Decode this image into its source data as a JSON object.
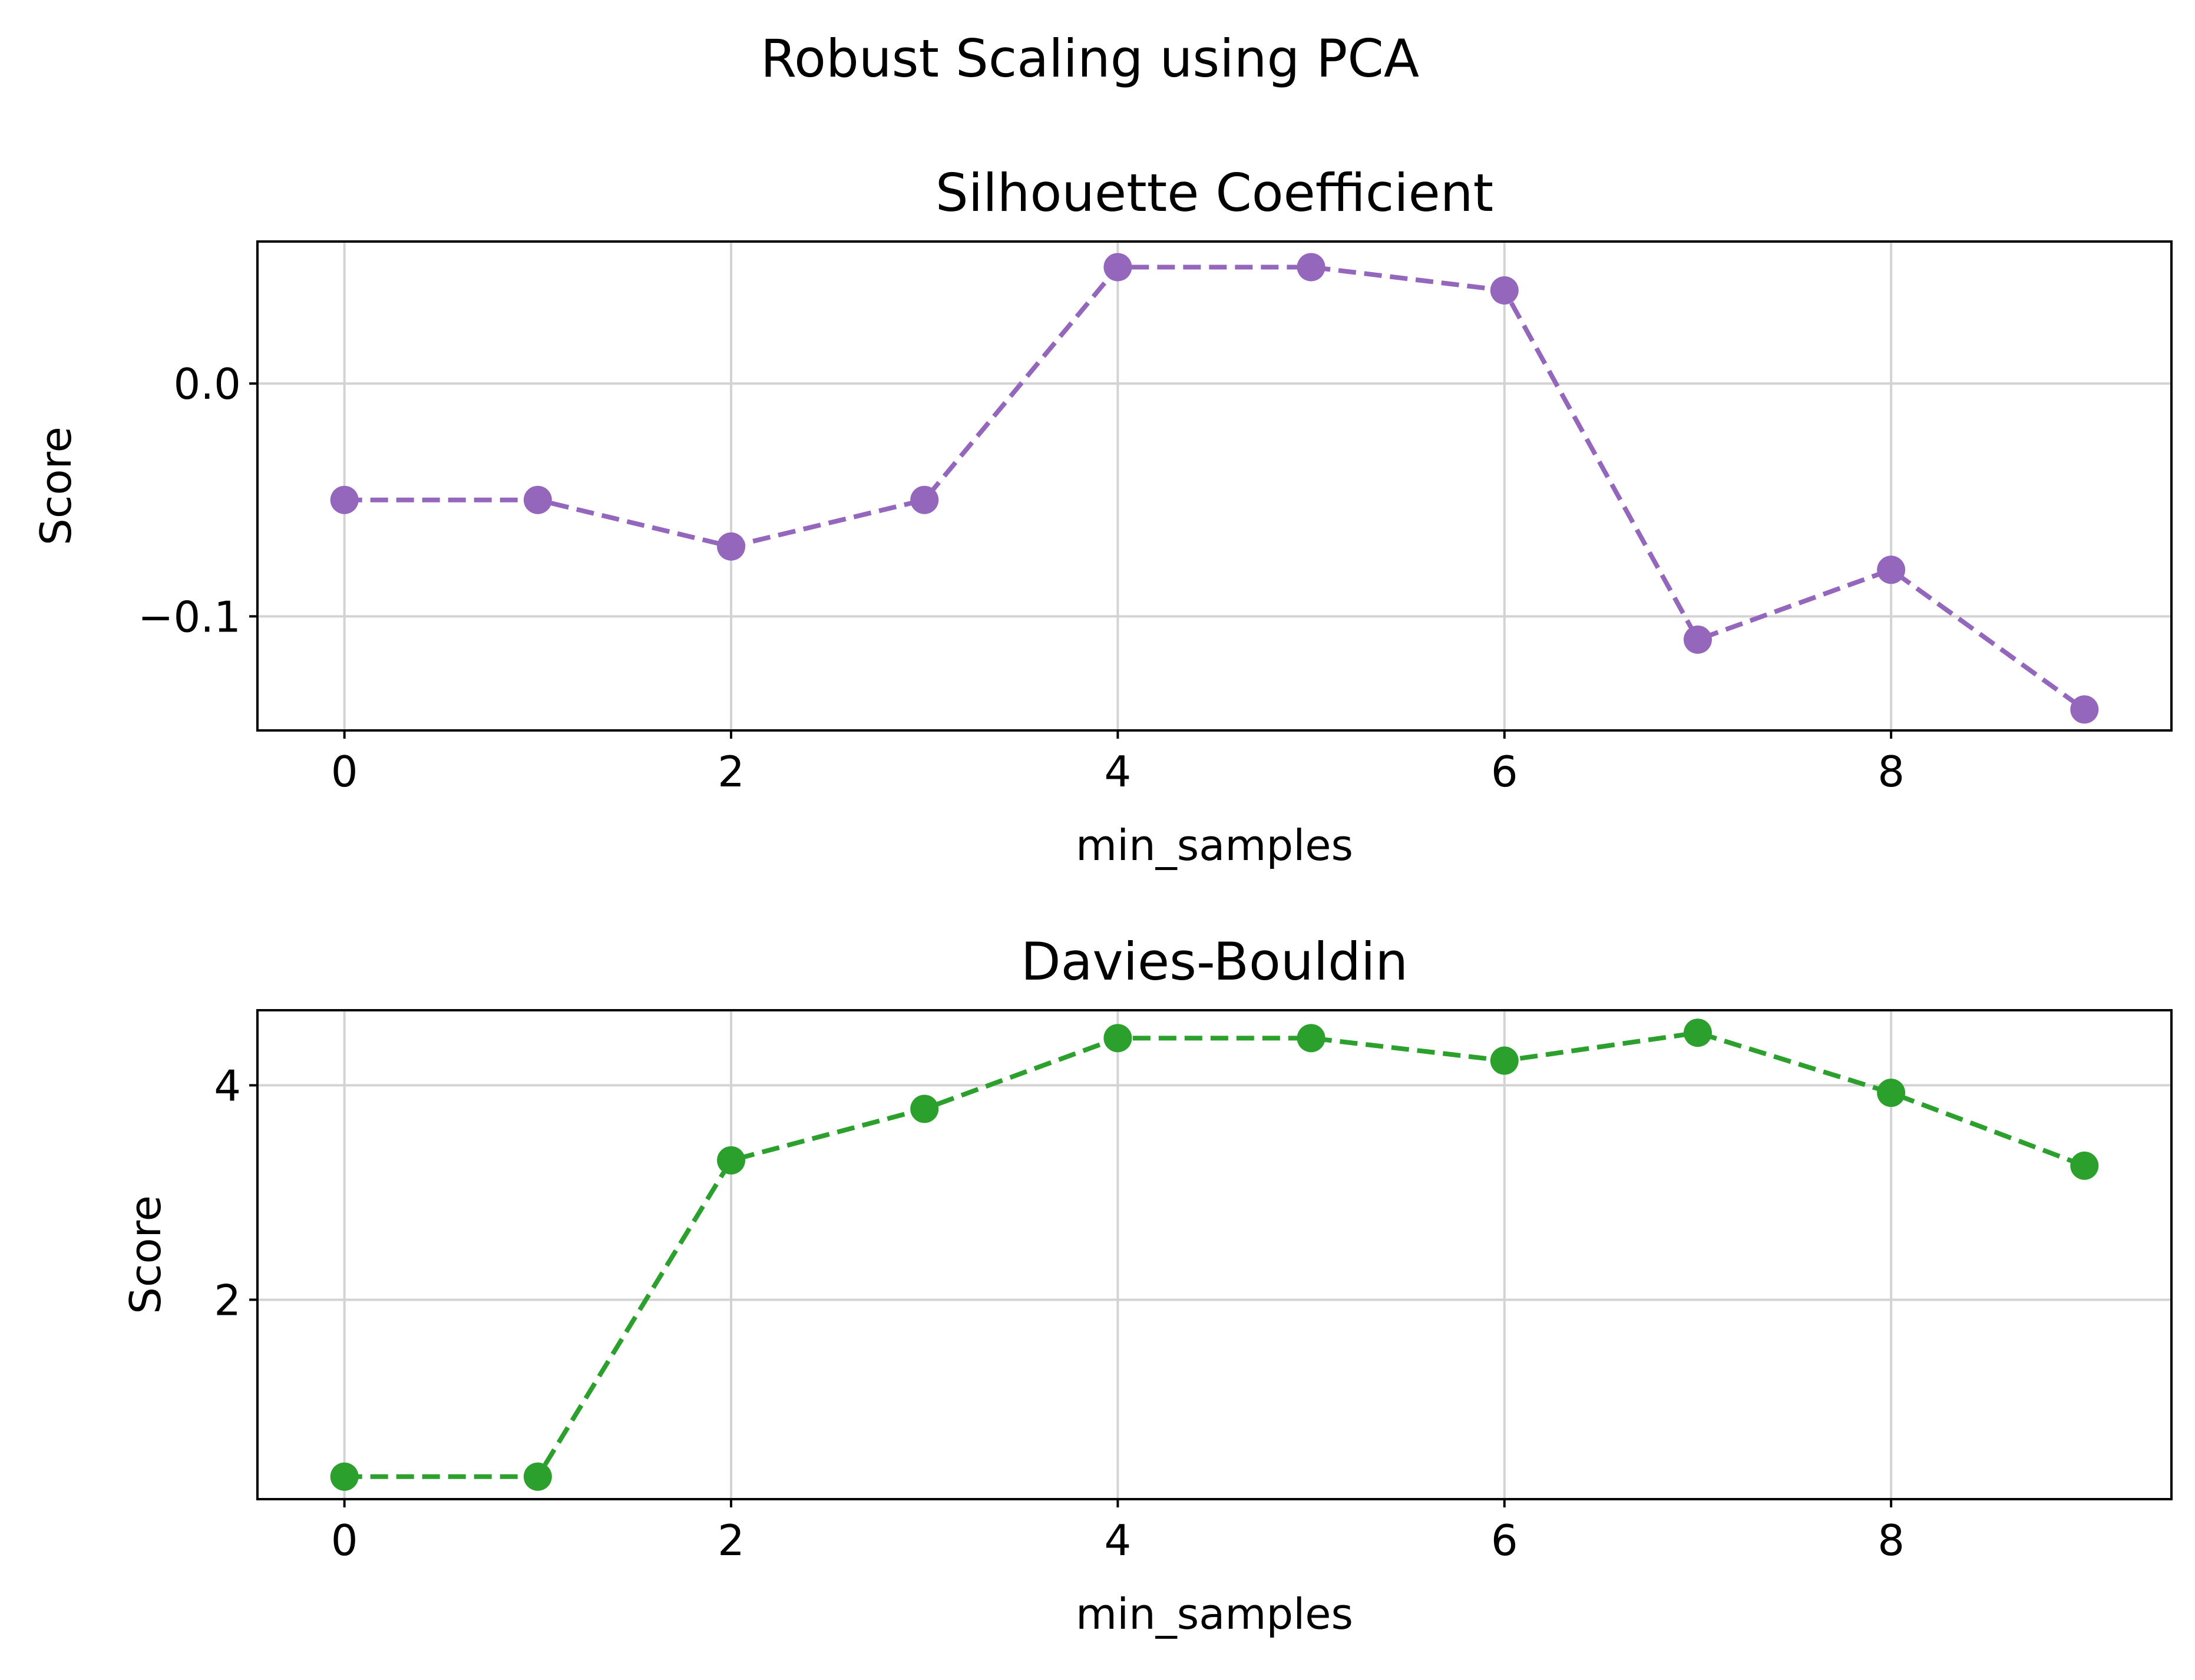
{
  "figure": {
    "title": "Robust Scaling using PCA"
  },
  "chart_data": [
    {
      "type": "line",
      "title": "Silhouette Coefficient",
      "xlabel": "min_samples",
      "ylabel": "Score",
      "x": [
        0,
        1,
        2,
        3,
        4,
        5,
        6,
        7,
        8,
        9
      ],
      "series": [
        {
          "values": [
            -0.05,
            -0.05,
            -0.07,
            -0.05,
            0.05,
            0.05,
            0.04,
            -0.11,
            -0.08,
            -0.14
          ],
          "color": "#9467bd",
          "linestyle": "dashed",
          "marker": "circle"
        }
      ],
      "xlim": [
        -0.45,
        9.45
      ],
      "ylim": [
        -0.149,
        0.061
      ],
      "xticks": [
        0,
        2,
        4,
        6,
        8
      ],
      "xtick_labels": [
        "0",
        "2",
        "4",
        "6",
        "8"
      ],
      "yticks": [
        0.0,
        -0.1
      ],
      "ytick_labels": [
        "0.0",
        "−0.1"
      ],
      "grid": true
    },
    {
      "type": "line",
      "title": "Davies-Bouldin",
      "xlabel": "min_samples",
      "ylabel": "Score",
      "x": [
        0,
        1,
        2,
        3,
        4,
        5,
        6,
        7,
        8,
        9
      ],
      "series": [
        {
          "values": [
            0.35,
            0.35,
            3.3,
            3.78,
            4.44,
            4.44,
            4.23,
            4.49,
            3.93,
            3.25
          ],
          "color": "#2ca02c",
          "linestyle": "dashed",
          "marker": "circle"
        }
      ],
      "xlim": [
        -0.45,
        9.45
      ],
      "ylim": [
        0.14,
        4.7
      ],
      "xticks": [
        0,
        2,
        4,
        6,
        8
      ],
      "xtick_labels": [
        "0",
        "2",
        "4",
        "6",
        "8"
      ],
      "yticks": [
        2,
        4
      ],
      "ytick_labels": [
        "2",
        "4"
      ],
      "grid": true
    }
  ]
}
